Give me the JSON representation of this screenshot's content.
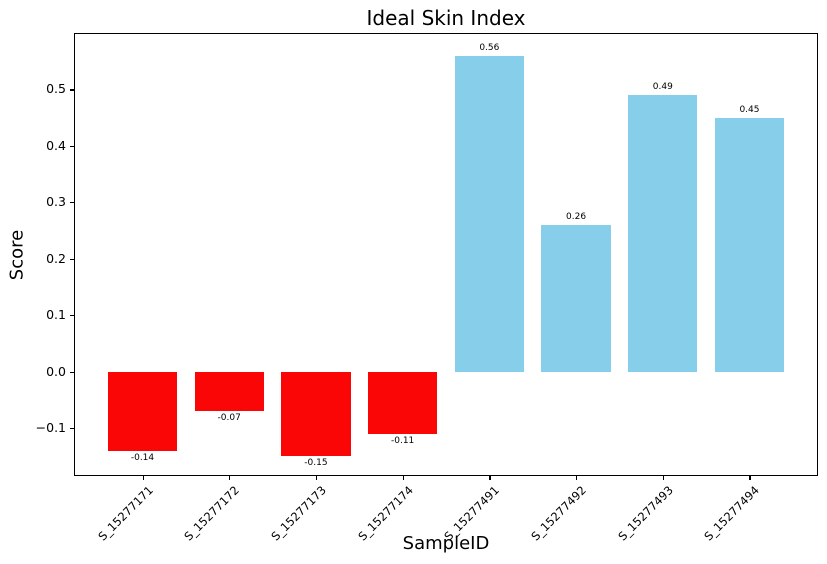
{
  "figure": {
    "background": "#ffffff",
    "spine_color": "#000000",
    "text_color": "#000000"
  },
  "chart_data": {
    "type": "bar",
    "title": "Ideal Skin Index",
    "xlabel": "SampleID",
    "ylabel": "Score",
    "categories": [
      "S_15277171",
      "S_15277172",
      "S_15277173",
      "S_15277174",
      "S_15277491",
      "S_15277492",
      "S_15277493",
      "S_15277494"
    ],
    "values": [
      -0.14,
      -0.07,
      -0.15,
      -0.11,
      0.56,
      0.26,
      0.49,
      0.45
    ],
    "bar_labels": [
      "-0.14",
      "-0.07",
      "-0.15",
      "-0.11",
      "0.56",
      "0.26",
      "0.49",
      "0.45"
    ],
    "bar_colors": {
      "negative": "#fb0606",
      "positive": "#87ceeb"
    },
    "yticks": [
      -0.1,
      0.0,
      0.1,
      0.2,
      0.3,
      0.4,
      0.5
    ],
    "ytick_labels": [
      "−0.1",
      "0.0",
      "0.1",
      "0.2",
      "0.3",
      "0.4",
      "0.5"
    ],
    "ylim": [
      -0.185,
      0.6
    ],
    "xlim": [
      -0.79,
      7.79
    ],
    "bar_width": 0.8,
    "xtick_rotation_deg": 45,
    "grid": false,
    "legend": null
  }
}
